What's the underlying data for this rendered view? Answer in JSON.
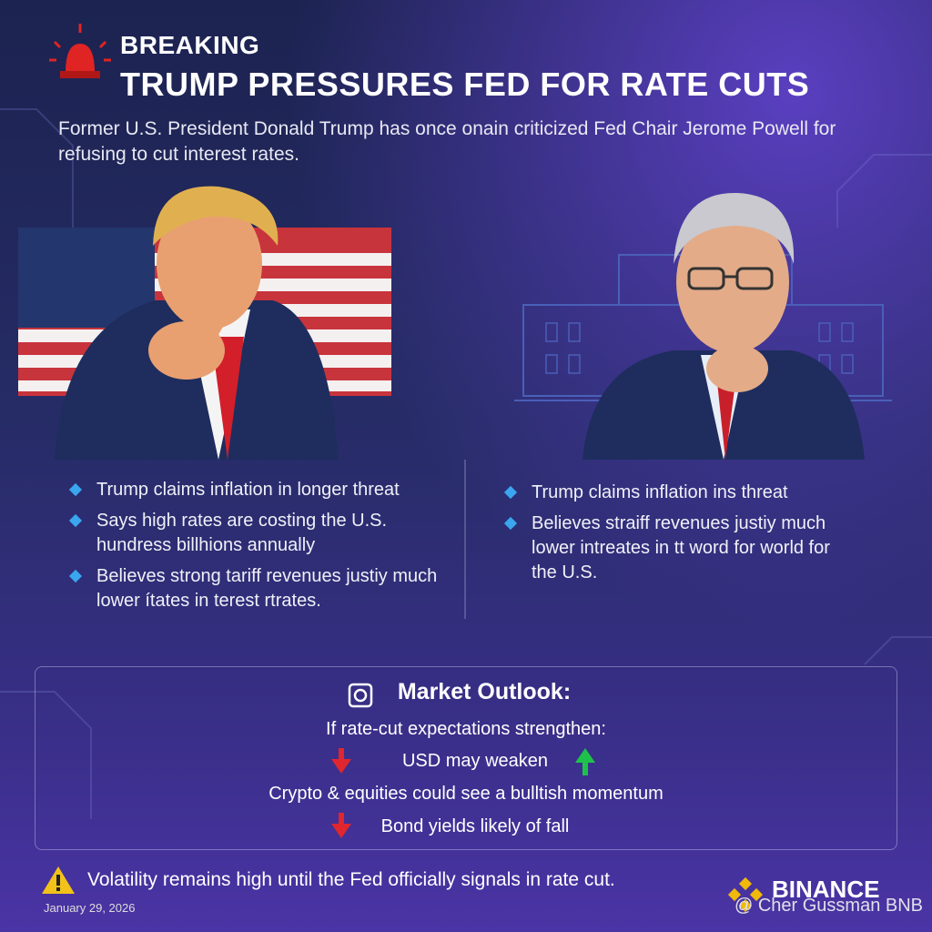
{
  "header": {
    "label": "BREAKING",
    "title": "TRUMP PRESSURES FED FOR RATE CUTS",
    "intro": "Former U.S. President Donald Trump has once onain criticized Fed Chair Jerome Powell for refusing to cut interest rates."
  },
  "left_points": [
    "Trump claims inflation in longer threat",
    "Says high rates are costing the U.S. hundress billhions annually",
    "Believes strong tariff revenues justiy much lower ítates in terest rtrates."
  ],
  "right_points": [
    "Trump claims inflation ins threat",
    "Believes straiff revenues justiy much lower intreates in tt word for world for the U.S."
  ],
  "outlook": {
    "title": "Market Outlook:",
    "condition": "If rate-cut expectations strengthen:",
    "items": [
      "USD may weaken",
      "Crypto & equities could see a bulltish momentum",
      "Bond yields likely of fall"
    ]
  },
  "footer": {
    "warning": "Volatility remains high until the Fed officially signals in rate cut.",
    "date": "January 29, 2026",
    "brand": "BINANCE",
    "credit": "@ Cher Gussman BNB"
  }
}
